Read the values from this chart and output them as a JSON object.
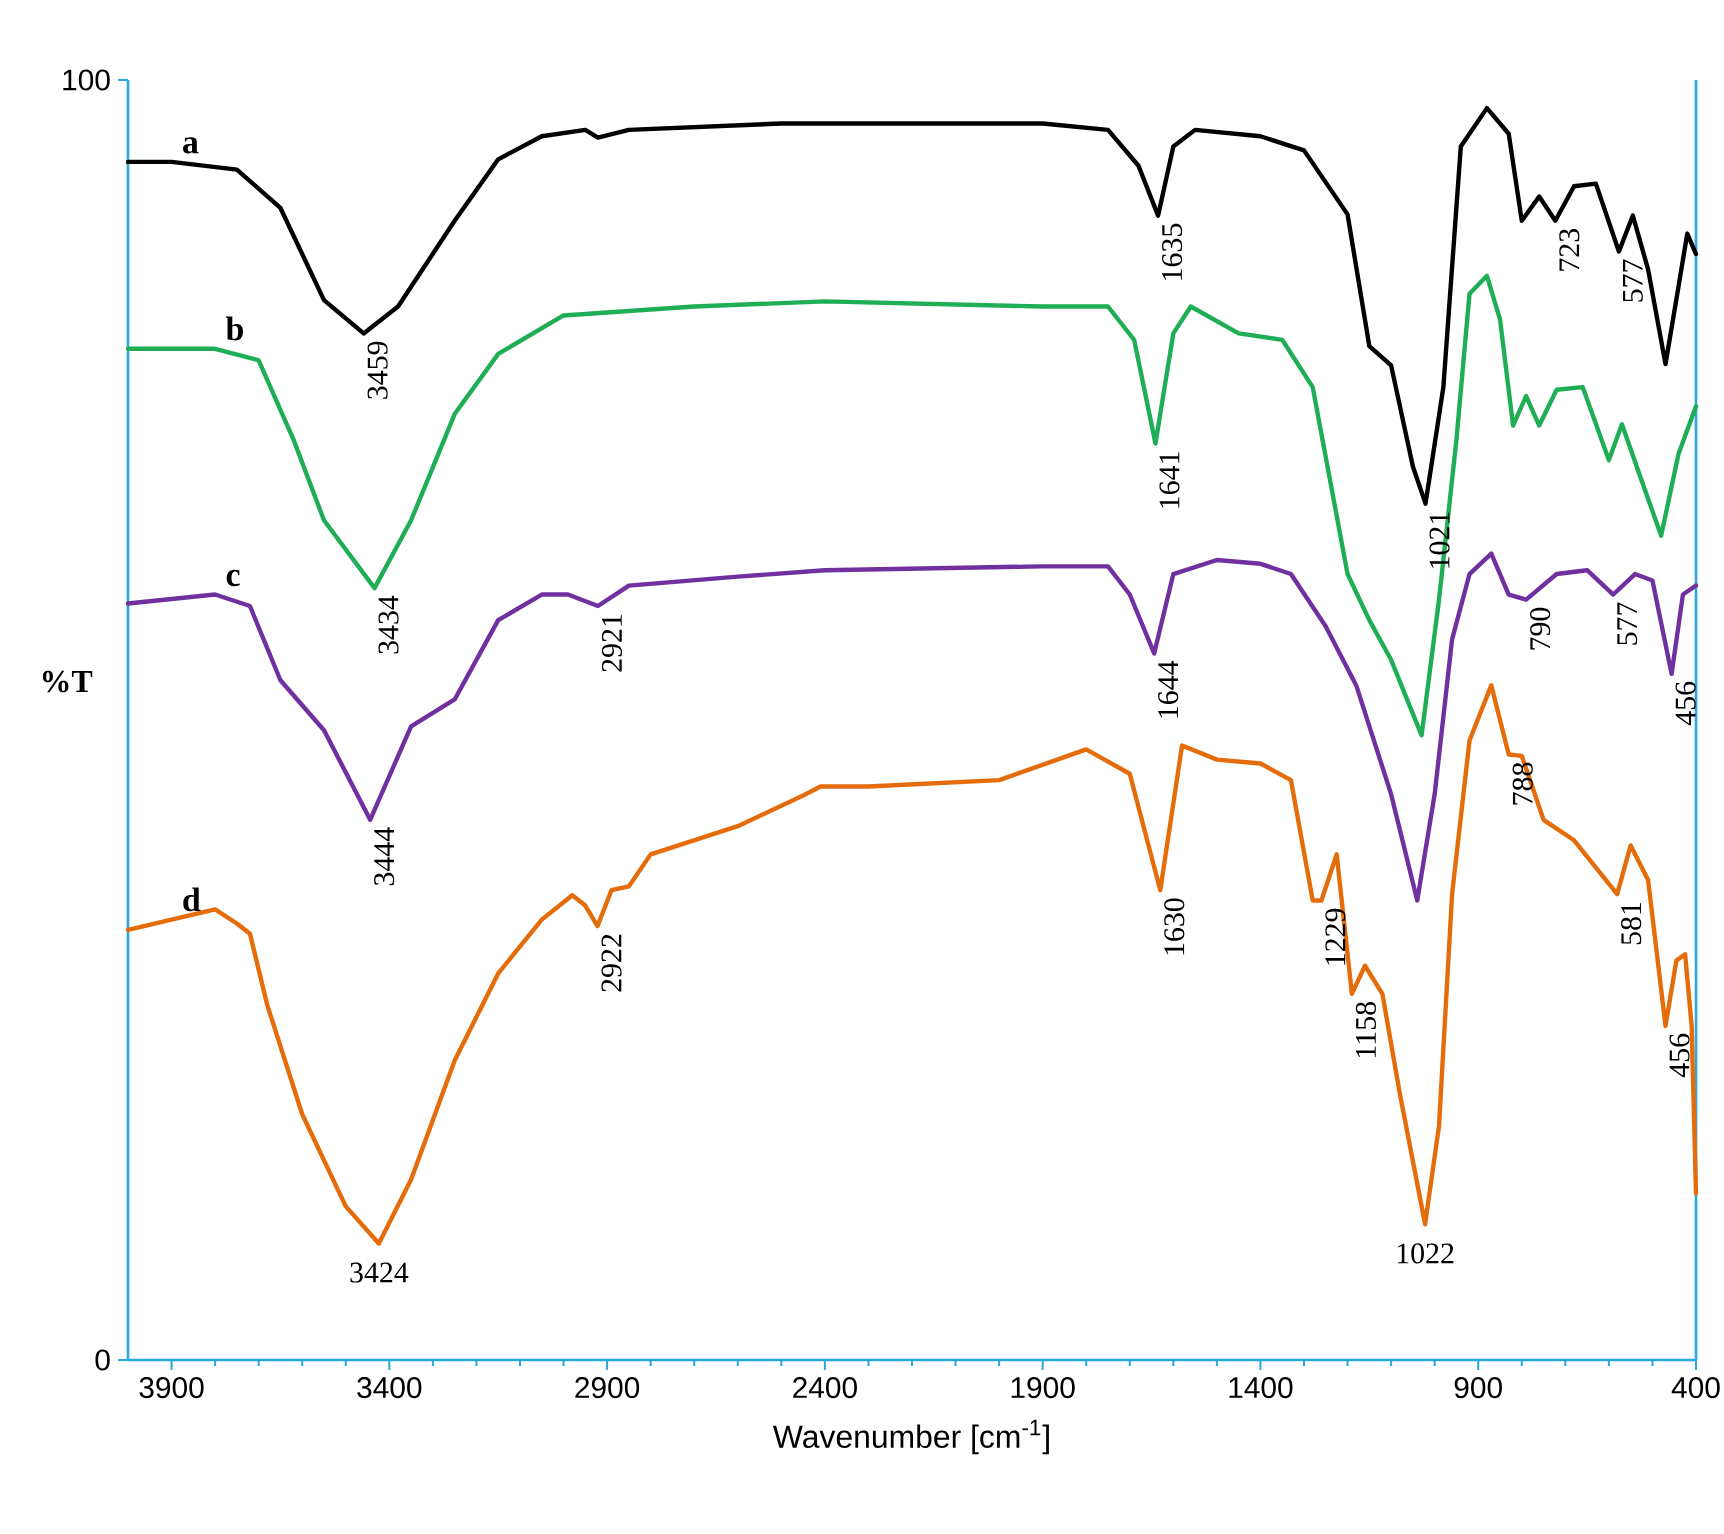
{
  "chart_data": {
    "type": "line",
    "xlabel": "Wavenumber [cm$^{-1}$]",
    "ylabel": "%T",
    "xlim": [
      4000,
      400
    ],
    "ylim": [
      0,
      100
    ],
    "xticks": [
      3900,
      3400,
      2900,
      2400,
      1900,
      1400,
      900,
      400
    ],
    "yticks": [
      0,
      100
    ],
    "series": [
      {
        "name": "a",
        "color": "#000000",
        "x": [
          4000,
          3900,
          3750,
          3650,
          3550,
          3459,
          3380,
          3250,
          3150,
          3050,
          2950,
          2921,
          2850,
          2500,
          2350,
          1900,
          1750,
          1680,
          1635,
          1600,
          1550,
          1400,
          1300,
          1200,
          1150,
          1100,
          1050,
          1021,
          980,
          940,
          880,
          830,
          800,
          760,
          723,
          680,
          630,
          577,
          545,
          510,
          470,
          440,
          420,
          400
        ],
        "values": [
          93.6,
          93.6,
          93,
          90,
          82.8,
          80.2,
          82.3,
          89,
          93.8,
          95.6,
          96.1,
          95.5,
          96.1,
          96.6,
          96.6,
          96.6,
          96.1,
          93.3,
          89.4,
          94.8,
          96.1,
          95.6,
          94.5,
          89.5,
          79.2,
          77.7,
          69.8,
          66.9,
          76,
          94.8,
          97.8,
          95.8,
          89,
          90.9,
          89,
          91.7,
          91.9,
          86.6,
          89.4,
          85.2,
          77.8,
          83.9,
          88,
          86.4
        ]
      },
      {
        "name": "b",
        "color": "#1fae55",
        "x": [
          4000,
          3800,
          3700,
          3620,
          3550,
          3434,
          3350,
          3250,
          3150,
          3000,
          2700,
          2400,
          1900,
          1750,
          1690,
          1641,
          1600,
          1560,
          1450,
          1350,
          1280,
          1200,
          1150,
          1100,
          1030,
          990,
          950,
          920,
          880,
          850,
          820,
          790,
          760,
          720,
          660,
          600,
          570,
          530,
          480,
          440,
          400
        ],
        "values": [
          79,
          79,
          78.1,
          71.9,
          65.6,
          60.3,
          65.6,
          73.9,
          78.6,
          81.6,
          82.3,
          82.7,
          82.3,
          82.3,
          79.7,
          71.6,
          80.2,
          82.3,
          80.2,
          79.7,
          76,
          61.4,
          57.8,
          54.7,
          48.8,
          59.4,
          71.9,
          83.3,
          84.7,
          81.3,
          73,
          75.3,
          73,
          75.8,
          76,
          70.3,
          73.1,
          69.2,
          64.4,
          70.8,
          74.5
        ]
      },
      {
        "name": "c",
        "color": "#7030a0",
        "x": [
          4000,
          3800,
          3720,
          3650,
          3550,
          3444,
          3350,
          3250,
          3150,
          3050,
          2990,
          2921,
          2850,
          2600,
          2400,
          1900,
          1750,
          1700,
          1644,
          1600,
          1500,
          1400,
          1330,
          1250,
          1180,
          1100,
          1040,
          1000,
          960,
          920,
          870,
          830,
          790,
          720,
          650,
          590,
          540,
          500,
          456,
          430,
          400
        ],
        "values": [
          59.1,
          59.8,
          58.9,
          53.1,
          49.2,
          42.2,
          49.5,
          51.6,
          57.8,
          59.8,
          59.8,
          58.9,
          60.5,
          61.2,
          61.7,
          62,
          62,
          59.8,
          55.2,
          61.4,
          62.5,
          62.2,
          61.4,
          57.3,
          52.7,
          44.2,
          35.9,
          44.2,
          56.3,
          61.4,
          63,
          59.8,
          59.4,
          61.4,
          61.7,
          59.8,
          61.4,
          60.9,
          53.6,
          59.8,
          60.5
        ]
      },
      {
        "name": "d",
        "color": "#e46c0a",
        "x": [
          4000,
          3900,
          3800,
          3750,
          3720,
          3680,
          3600,
          3500,
          3424,
          3350,
          3250,
          3150,
          3050,
          2980,
          2950,
          2922,
          2890,
          2850,
          2800,
          2600,
          2450,
          2410,
          2300,
          2000,
          1800,
          1700,
          1630,
          1580,
          1500,
          1400,
          1330,
          1280,
          1260,
          1225,
          1190,
          1160,
          1120,
          1080,
          1022,
          990,
          960,
          920,
          870,
          830,
          800,
          750,
          680,
          581,
          550,
          510,
          470,
          445,
          425,
          410,
          400
        ],
        "values": [
          33.6,
          34.4,
          35.2,
          34.1,
          33.3,
          27.7,
          19.2,
          12,
          9.1,
          14.1,
          23.4,
          30.2,
          34.4,
          36.3,
          35.5,
          33.9,
          36.7,
          37,
          39.5,
          41.7,
          44.1,
          44.8,
          44.8,
          45.3,
          47.7,
          45.8,
          36.7,
          48,
          46.9,
          46.6,
          45.3,
          35.9,
          35.9,
          39.5,
          28.6,
          30.8,
          28.6,
          20.8,
          10.6,
          18.3,
          36.4,
          48.4,
          52.7,
          47.3,
          47.2,
          42.2,
          40.6,
          36.4,
          40.2,
          37.5,
          26.1,
          31.2,
          31.7,
          26.1,
          13
        ]
      }
    ],
    "annotations": [
      {
        "text": "3459",
        "x": 3459,
        "y": 80.2
      },
      {
        "text": "1635",
        "x": 1635,
        "y": 89.4
      },
      {
        "text": "1021",
        "x": 1021,
        "y": 66.9
      },
      {
        "text": "723",
        "x": 723,
        "y": 89
      },
      {
        "text": "577",
        "x": 577,
        "y": 86.6
      },
      {
        "text": "3434",
        "x": 3434,
        "y": 60.3
      },
      {
        "text": "1641",
        "x": 1641,
        "y": 71.6
      },
      {
        "text": "3444",
        "x": 3444,
        "y": 42.2
      },
      {
        "text": "2921",
        "x": 2921,
        "y": 58.9
      },
      {
        "text": "1644",
        "x": 1644,
        "y": 55.2
      },
      {
        "text": "790",
        "x": 790,
        "y": 59.4
      },
      {
        "text": "577",
        "x": 590,
        "y": 59.8
      },
      {
        "text": "456",
        "x": 456,
        "y": 53.6
      },
      {
        "text": "3424",
        "x": 3424,
        "y": 9.1
      },
      {
        "text": "2922",
        "x": 2922,
        "y": 33.9
      },
      {
        "text": "1630",
        "x": 1630,
        "y": 36.7
      },
      {
        "text": "1229",
        "x": 1260,
        "y": 35.9
      },
      {
        "text": "1158",
        "x": 1190,
        "y": 28.6
      },
      {
        "text": "1022",
        "x": 1022,
        "y": 10.6
      },
      {
        "text": "788",
        "x": 830,
        "y": 47.3
      },
      {
        "text": "581",
        "x": 581,
        "y": 36.4
      },
      {
        "text": "456",
        "x": 470,
        "y": 26.1
      }
    ]
  }
}
